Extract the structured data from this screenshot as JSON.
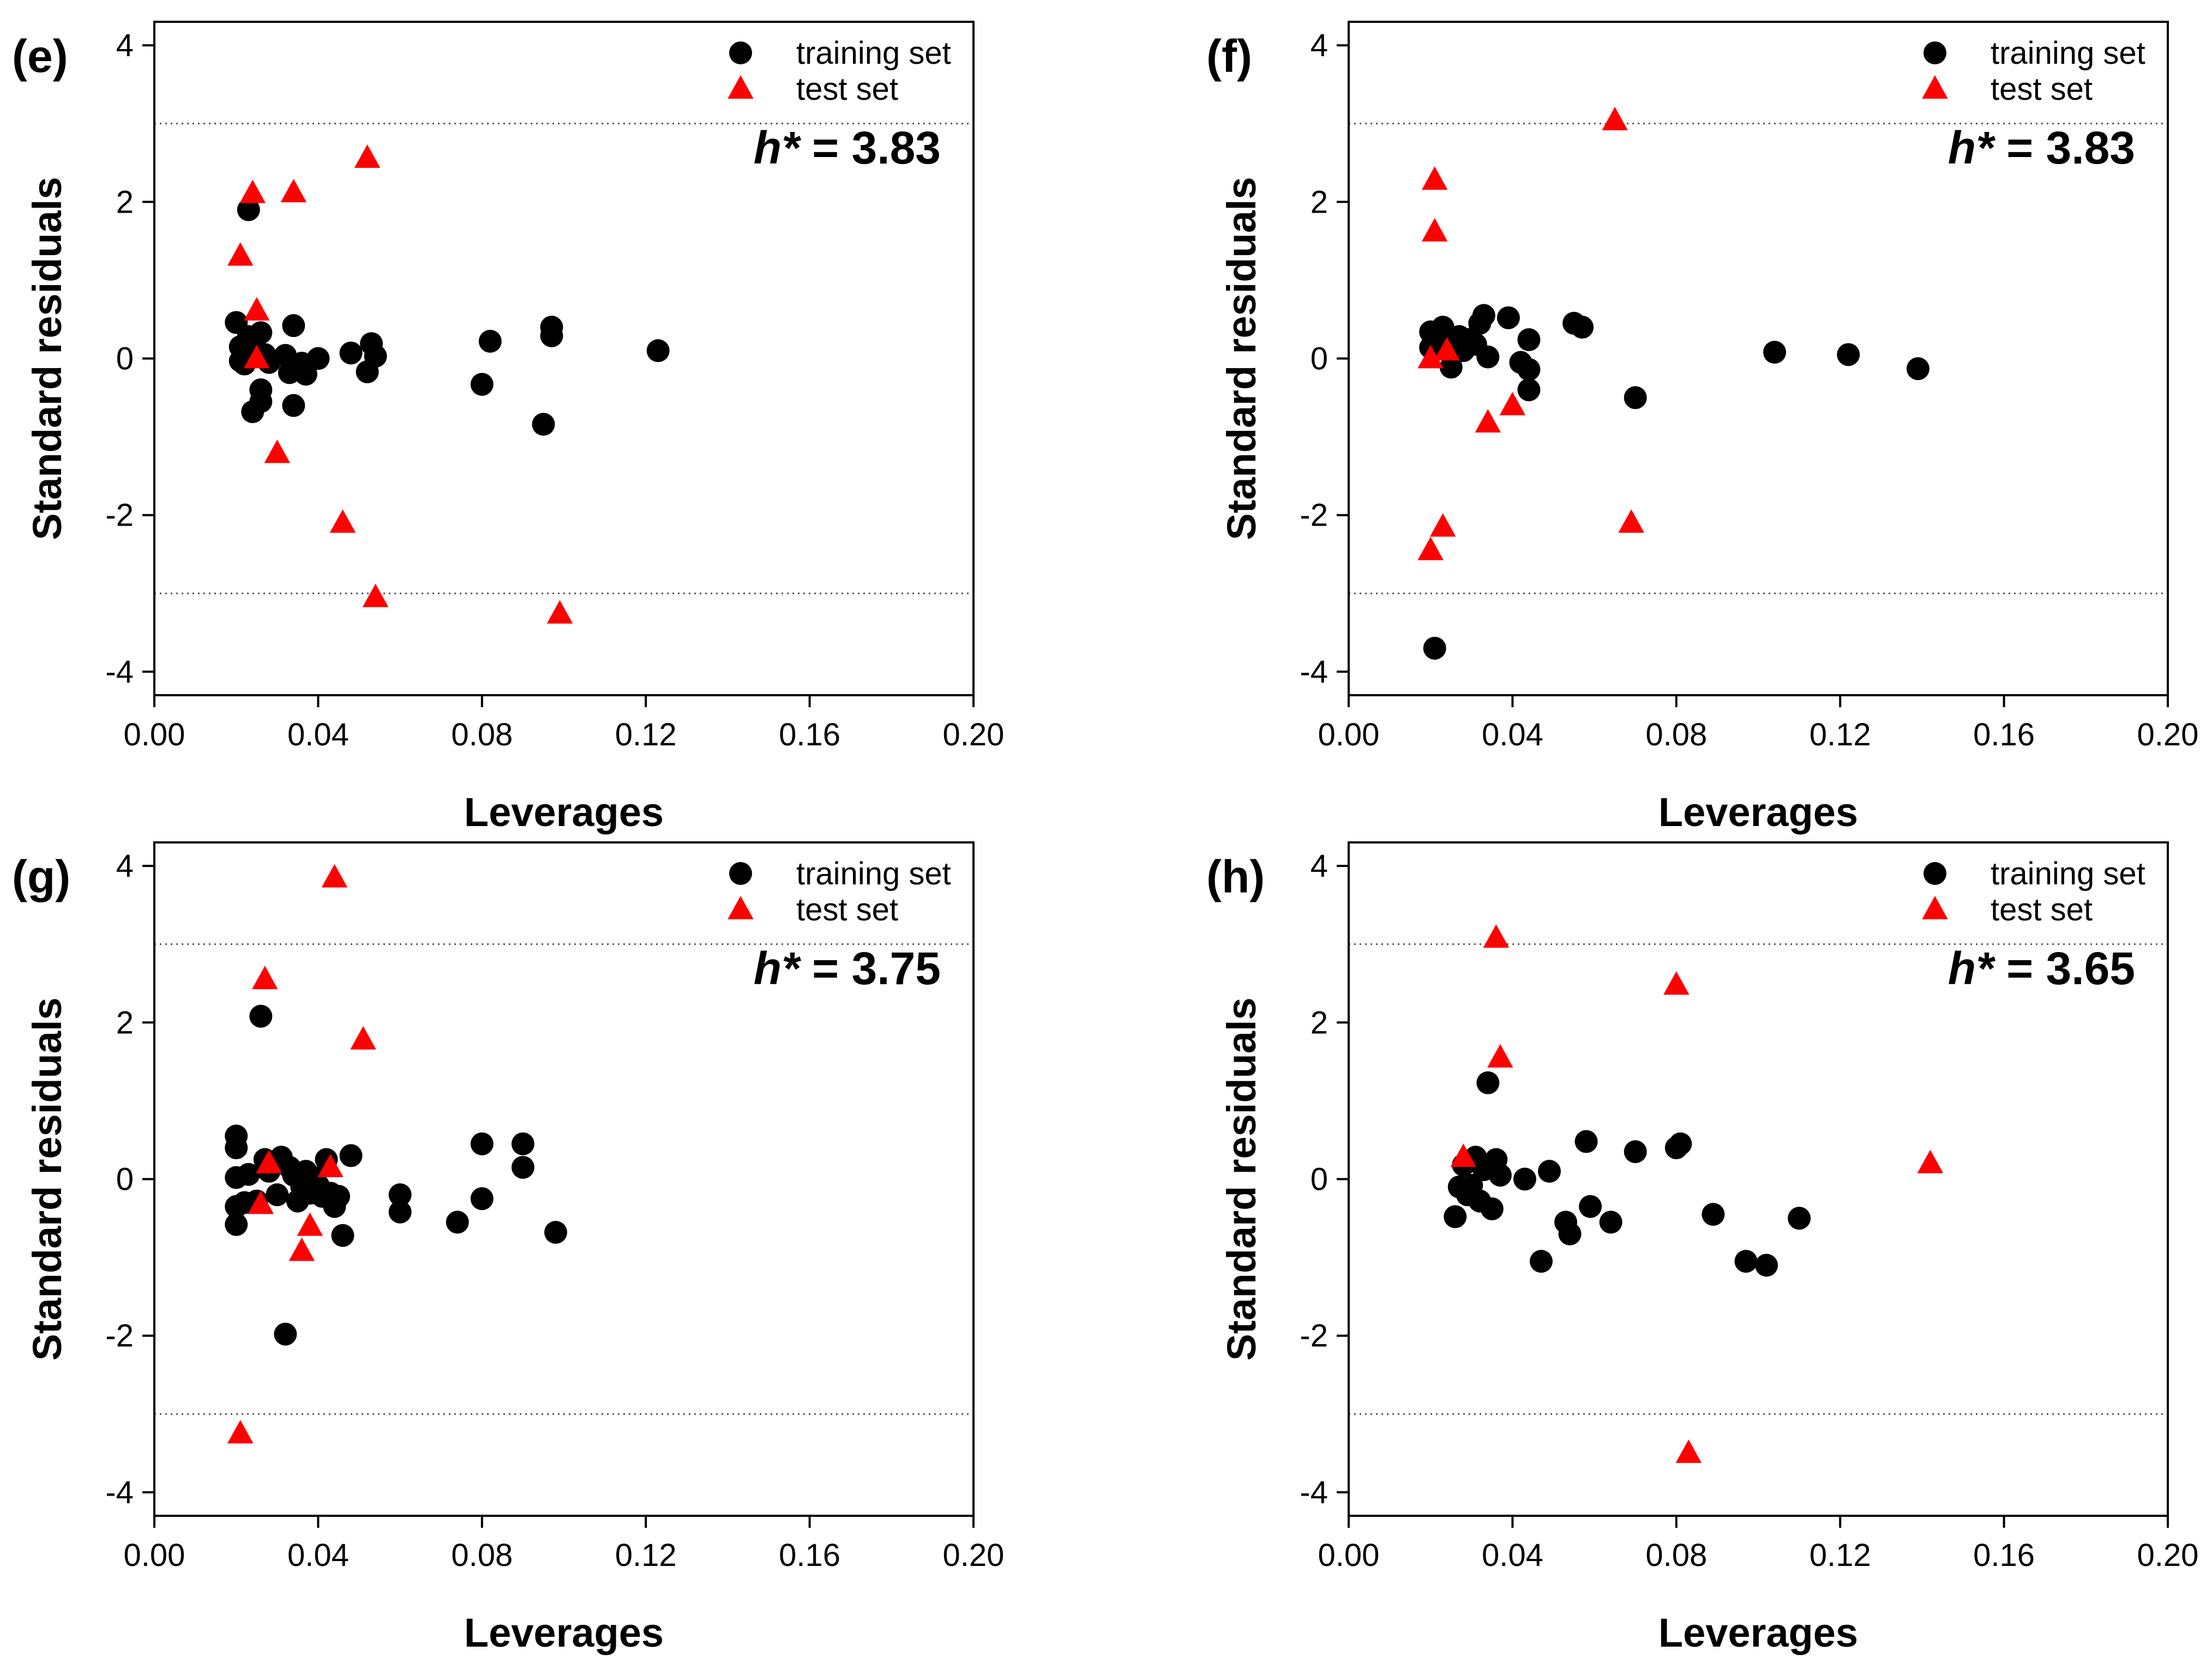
{
  "chart_data": [
    {
      "type": "scatter",
      "panel_label": "(e)",
      "xlabel": "Leverages",
      "ylabel": "Standard residuals",
      "xlim": [
        0.0,
        0.2
      ],
      "ylim": [
        -4.3,
        4.3
      ],
      "xticks": [
        "0.00",
        "0.04",
        "0.08",
        "0.12",
        "0.16",
        "0.20"
      ],
      "yticks": [
        "-4",
        "-2",
        "0",
        "2",
        "4"
      ],
      "reference_lines": [
        3,
        -3
      ],
      "annotation": {
        "italic": "h*",
        "text": " = 3.83"
      },
      "legend": {
        "position": "top-right"
      },
      "series": [
        {
          "name": "training set",
          "marker": "circle",
          "color": "#000000",
          "points": [
            [
              0.02,
              0.46
            ],
            [
              0.021,
              0.15
            ],
            [
              0.021,
              -0.03
            ],
            [
              0.022,
              -0.07
            ],
            [
              0.023,
              1.9
            ],
            [
              0.023,
              0.28
            ],
            [
              0.024,
              -0.68
            ],
            [
              0.025,
              0.06
            ],
            [
              0.026,
              0.33
            ],
            [
              0.026,
              -0.4
            ],
            [
              0.026,
              -0.55
            ],
            [
              0.027,
              0.05
            ],
            [
              0.028,
              -0.05
            ],
            [
              0.032,
              0.04
            ],
            [
              0.033,
              -0.18
            ],
            [
              0.034,
              -0.6
            ],
            [
              0.034,
              0.42
            ],
            [
              0.036,
              -0.06
            ],
            [
              0.037,
              -0.2
            ],
            [
              0.04,
              0.0
            ],
            [
              0.048,
              0.07
            ],
            [
              0.052,
              -0.17
            ],
            [
              0.053,
              0.19
            ],
            [
              0.054,
              0.03
            ],
            [
              0.08,
              -0.33
            ],
            [
              0.082,
              0.22
            ],
            [
              0.095,
              -0.84
            ],
            [
              0.097,
              0.4
            ],
            [
              0.097,
              0.29
            ],
            [
              0.123,
              0.1
            ]
          ]
        },
        {
          "name": "test set",
          "marker": "triangle",
          "color": "#ff0000",
          "points": [
            [
              0.021,
              1.31
            ],
            [
              0.024,
              2.11
            ],
            [
              0.025,
              0.61
            ],
            [
              0.025,
              0.0
            ],
            [
              0.03,
              -1.21
            ],
            [
              0.034,
              2.12
            ],
            [
              0.046,
              -2.1
            ],
            [
              0.052,
              2.56
            ],
            [
              0.054,
              -3.05
            ],
            [
              0.099,
              -3.26
            ]
          ]
        }
      ]
    },
    {
      "type": "scatter",
      "panel_label": "(f)",
      "xlabel": "Leverages",
      "ylabel": "Standard residuals",
      "xlim": [
        0.0,
        0.2
      ],
      "ylim": [
        -4.3,
        4.3
      ],
      "xticks": [
        "0.00",
        "0.04",
        "0.08",
        "0.12",
        "0.16",
        "0.20"
      ],
      "yticks": [
        "-4",
        "-2",
        "0",
        "2",
        "4"
      ],
      "reference_lines": [
        3,
        -3
      ],
      "annotation": {
        "italic": "h*",
        "text": " = 3.83"
      },
      "legend": {
        "position": "top-right"
      },
      "series": [
        {
          "name": "training set",
          "marker": "circle",
          "color": "#000000",
          "points": [
            [
              0.02,
              0.34
            ],
            [
              0.02,
              0.14
            ],
            [
              0.021,
              0.25
            ],
            [
              0.021,
              -3.7
            ],
            [
              0.022,
              0.3
            ],
            [
              0.023,
              0.4
            ],
            [
              0.024,
              0.18
            ],
            [
              0.025,
              -0.11
            ],
            [
              0.026,
              0.2
            ],
            [
              0.027,
              0.28
            ],
            [
              0.028,
              0.1
            ],
            [
              0.03,
              0.25
            ],
            [
              0.031,
              0.18
            ],
            [
              0.032,
              0.45
            ],
            [
              0.033,
              0.55
            ],
            [
              0.034,
              0.02
            ],
            [
              0.039,
              0.52
            ],
            [
              0.042,
              -0.05
            ],
            [
              0.044,
              0.24
            ],
            [
              0.044,
              -0.14
            ],
            [
              0.044,
              -0.4
            ],
            [
              0.055,
              0.45
            ],
            [
              0.057,
              0.4
            ],
            [
              0.07,
              -0.5
            ],
            [
              0.104,
              0.08
            ],
            [
              0.122,
              0.05
            ],
            [
              0.139,
              -0.13
            ]
          ]
        },
        {
          "name": "test set",
          "marker": "triangle",
          "color": "#ff0000",
          "points": [
            [
              0.02,
              -2.45
            ],
            [
              0.02,
              0.0
            ],
            [
              0.021,
              1.62
            ],
            [
              0.021,
              2.28
            ],
            [
              0.023,
              -2.15
            ],
            [
              0.024,
              0.1
            ],
            [
              0.034,
              -0.82
            ],
            [
              0.04,
              -0.6
            ],
            [
              0.065,
              3.04
            ],
            [
              0.069,
              -2.1
            ]
          ]
        }
      ]
    },
    {
      "type": "scatter",
      "panel_label": "(g)",
      "xlabel": "Leverages",
      "ylabel": "Standard residuals",
      "xlim": [
        0.0,
        0.2
      ],
      "ylim": [
        -4.3,
        4.3
      ],
      "xticks": [
        "0.00",
        "0.04",
        "0.08",
        "0.12",
        "0.16",
        "0.20"
      ],
      "yticks": [
        "-4",
        "-2",
        "0",
        "2",
        "4"
      ],
      "reference_lines": [
        3,
        -3
      ],
      "annotation": {
        "italic": "h*",
        "text": " = 3.75"
      },
      "legend": {
        "position": "top-right"
      },
      "series": [
        {
          "name": "training set",
          "marker": "circle",
          "color": "#000000",
          "points": [
            [
              0.02,
              0.55
            ],
            [
              0.02,
              0.4
            ],
            [
              0.02,
              0.02
            ],
            [
              0.02,
              -0.35
            ],
            [
              0.02,
              -0.58
            ],
            [
              0.022,
              -0.3
            ],
            [
              0.023,
              0.06
            ],
            [
              0.025,
              -0.28
            ],
            [
              0.026,
              2.08
            ],
            [
              0.027,
              0.25
            ],
            [
              0.028,
              0.1
            ],
            [
              0.03,
              -0.2
            ],
            [
              0.031,
              0.28
            ],
            [
              0.032,
              -1.98
            ],
            [
              0.033,
              0.15
            ],
            [
              0.034,
              0.05
            ],
            [
              0.035,
              -0.28
            ],
            [
              0.036,
              -0.1
            ],
            [
              0.037,
              0.1
            ],
            [
              0.038,
              -0.18
            ],
            [
              0.039,
              0.02
            ],
            [
              0.04,
              -0.08
            ],
            [
              0.041,
              -0.22
            ],
            [
              0.042,
              0.25
            ],
            [
              0.043,
              -0.18
            ],
            [
              0.044,
              -0.35
            ],
            [
              0.045,
              -0.22
            ],
            [
              0.046,
              -0.72
            ],
            [
              0.048,
              0.3
            ],
            [
              0.06,
              -0.2
            ],
            [
              0.06,
              -0.42
            ],
            [
              0.074,
              -0.55
            ],
            [
              0.08,
              0.45
            ],
            [
              0.08,
              -0.25
            ],
            [
              0.09,
              0.45
            ],
            [
              0.09,
              0.15
            ],
            [
              0.098,
              -0.68
            ]
          ]
        },
        {
          "name": "test set",
          "marker": "triangle",
          "color": "#ff0000",
          "points": [
            [
              0.021,
              -3.25
            ],
            [
              0.026,
              -0.32
            ],
            [
              0.027,
              2.55
            ],
            [
              0.028,
              0.2
            ],
            [
              0.036,
              -0.92
            ],
            [
              0.038,
              -0.6
            ],
            [
              0.043,
              0.15
            ],
            [
              0.044,
              3.85
            ],
            [
              0.051,
              1.78
            ]
          ]
        }
      ]
    },
    {
      "type": "scatter",
      "panel_label": "(h)",
      "xlabel": "Leverages",
      "ylabel": "Standard residuals",
      "xlim": [
        0.0,
        0.2
      ],
      "ylim": [
        -4.3,
        4.3
      ],
      "xticks": [
        "0.00",
        "0.04",
        "0.08",
        "0.12",
        "0.16",
        "0.20"
      ],
      "yticks": [
        "-4",
        "-2",
        "0",
        "2",
        "4"
      ],
      "reference_lines": [
        3,
        -3
      ],
      "annotation": {
        "italic": "h*",
        "text": " = 3.65"
      },
      "legend": {
        "position": "top-right"
      },
      "series": [
        {
          "name": "training set",
          "marker": "circle",
          "color": "#000000",
          "points": [
            [
              0.026,
              -0.48
            ],
            [
              0.027,
              -0.1
            ],
            [
              0.028,
              0.18
            ],
            [
              0.029,
              -0.2
            ],
            [
              0.03,
              -0.08
            ],
            [
              0.031,
              0.28
            ],
            [
              0.032,
              -0.28
            ],
            [
              0.033,
              0.12
            ],
            [
              0.034,
              1.23
            ],
            [
              0.035,
              -0.38
            ],
            [
              0.036,
              0.25
            ],
            [
              0.037,
              0.05
            ],
            [
              0.043,
              0.0
            ],
            [
              0.047,
              -1.05
            ],
            [
              0.049,
              0.1
            ],
            [
              0.058,
              0.48
            ],
            [
              0.059,
              -0.35
            ],
            [
              0.053,
              -0.55
            ],
            [
              0.054,
              -0.7
            ],
            [
              0.064,
              -0.55
            ],
            [
              0.07,
              0.35
            ],
            [
              0.08,
              0.4
            ],
            [
              0.081,
              0.45
            ],
            [
              0.089,
              -0.45
            ],
            [
              0.097,
              -1.05
            ],
            [
              0.102,
              -1.1
            ],
            [
              0.11,
              -0.5
            ]
          ]
        },
        {
          "name": "test set",
          "marker": "triangle",
          "color": "#ff0000",
          "points": [
            [
              0.028,
              0.28
            ],
            [
              0.036,
              3.08
            ],
            [
              0.037,
              1.55
            ],
            [
              0.08,
              2.48
            ],
            [
              0.083,
              -3.5
            ],
            [
              0.142,
              0.2
            ]
          ]
        }
      ]
    }
  ]
}
